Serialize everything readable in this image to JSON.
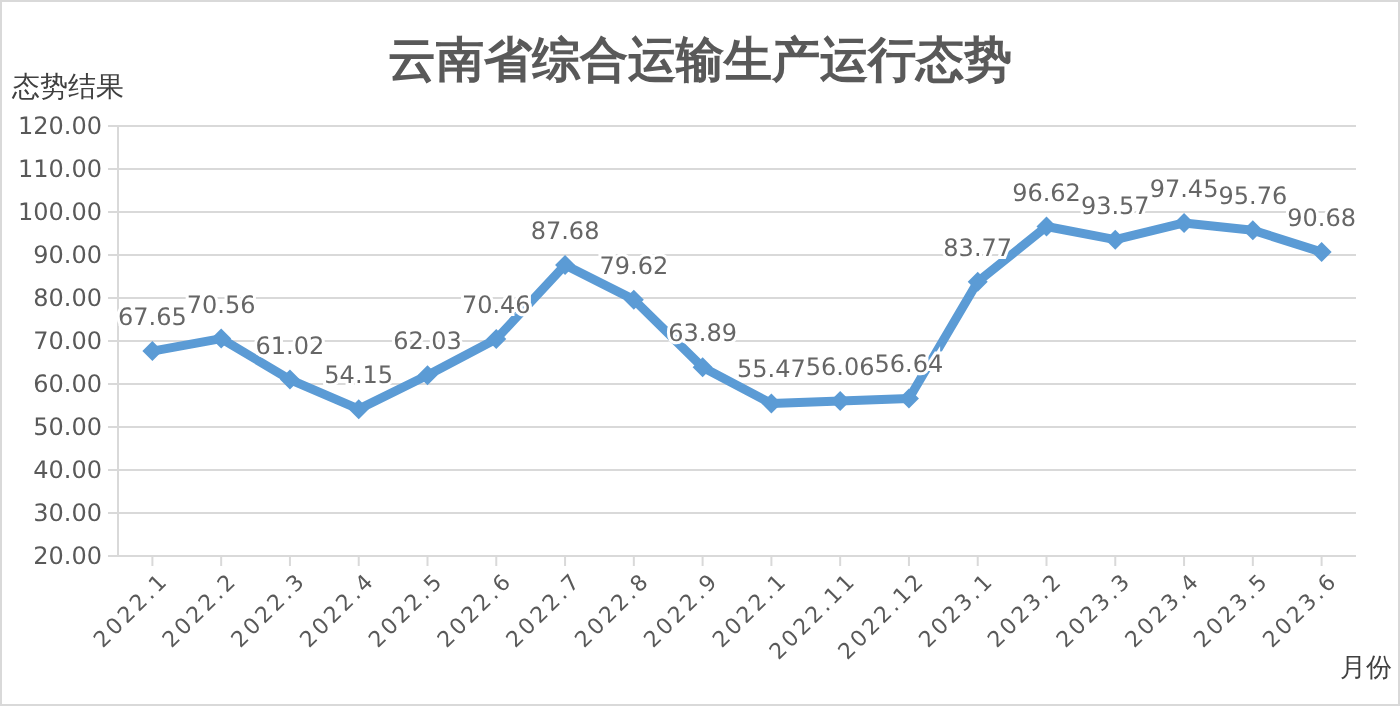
{
  "chart_data": {
    "type": "line",
    "title": "云南省综合运输生产运行态势",
    "xlabel": "月份",
    "ylabel": "态势结果",
    "categories": [
      "2022.1",
      "2022.2",
      "2022.3",
      "2022.4",
      "2022.5",
      "2022.6",
      "2022.7",
      "2022.8",
      "2022.9",
      "2022.1",
      "2022.11",
      "2022.12",
      "2023.1",
      "2023.2",
      "2023.3",
      "2023.4",
      "2023.5",
      "2023.6"
    ],
    "series": [
      {
        "color": "#5b9bd5",
        "values": [
          67.65,
          70.56,
          61.02,
          54.15,
          62.03,
          70.46,
          87.68,
          79.62,
          63.89,
          55.47,
          56.06,
          56.64,
          83.77,
          96.62,
          93.57,
          97.45,
          95.76,
          90.68
        ]
      }
    ],
    "ylim": [
      20,
      120
    ],
    "yticks": [
      {
        "value": 20,
        "label": "20.00"
      },
      {
        "value": 30,
        "label": "30.00"
      },
      {
        "value": 40,
        "label": "40.00"
      },
      {
        "value": 50,
        "label": "50.00"
      },
      {
        "value": 60,
        "label": "60.00"
      },
      {
        "value": 70,
        "label": "70.00"
      },
      {
        "value": 80,
        "label": "80.00"
      },
      {
        "value": 90,
        "label": "90.00"
      },
      {
        "value": 100,
        "label": "100.00"
      },
      {
        "value": 110,
        "label": "110.00"
      },
      {
        "value": 120,
        "label": "120.00"
      }
    ],
    "grid": "y",
    "marker": "diamond",
    "line_style": "solid",
    "data_labels": true
  }
}
